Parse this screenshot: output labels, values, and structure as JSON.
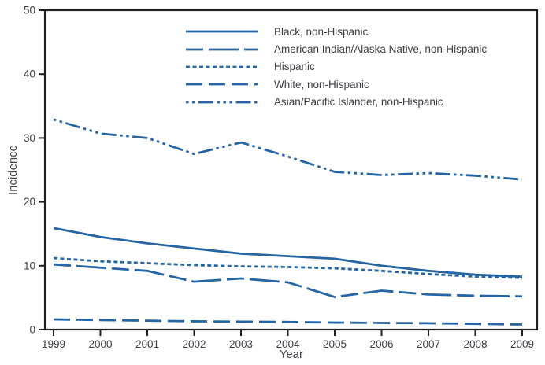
{
  "chart_data": {
    "type": "line",
    "title": "",
    "xlabel": "Year",
    "ylabel": "Incidence",
    "x": [
      1999,
      2000,
      2001,
      2002,
      2003,
      2004,
      2005,
      2006,
      2007,
      2008,
      2009
    ],
    "x_tick_labels": [
      "1999",
      "2000",
      "2001",
      "2002",
      "2003",
      "2004",
      "2005",
      "2006",
      "2007",
      "2008",
      "2009"
    ],
    "y_ticks": [
      0,
      10,
      20,
      30,
      40,
      50
    ],
    "ylim": [
      0,
      50
    ],
    "grid": false,
    "legend_position": "inside-top-center",
    "line_color": "#2565A3",
    "frame_color": "#231f20",
    "text_color": "#3b3e44",
    "series": [
      {
        "name": "Black, non-Hispanic",
        "dash": "solid",
        "values": [
          15.9,
          14.5,
          13.5,
          12.7,
          11.9,
          11.5,
          11.1,
          10.0,
          9.2,
          8.6,
          8.3
        ]
      },
      {
        "name": "American Indian/Alaska Native, non-Hispanic",
        "dash": "alt-long-dash",
        "values": [
          10.2,
          9.7,
          9.2,
          7.5,
          8.0,
          7.4,
          5.1,
          6.1,
          5.5,
          5.3,
          5.2
        ]
      },
      {
        "name": "Hispanic",
        "dash": "short-dash",
        "values": [
          11.2,
          10.7,
          10.4,
          10.1,
          9.9,
          9.8,
          9.6,
          9.2,
          8.7,
          8.3,
          8.1
        ]
      },
      {
        "name": "White, non-Hispanic",
        "dash": "long-dash",
        "values": [
          1.6,
          1.5,
          1.4,
          1.3,
          1.25,
          1.2,
          1.1,
          1.05,
          1.0,
          0.9,
          0.8
        ]
      },
      {
        "name": "Asian/Pacific Islander, non-Hispanic",
        "dash": "dash-dot-dot",
        "values": [
          32.9,
          30.7,
          30.0,
          27.5,
          29.3,
          27.1,
          24.7,
          24.2,
          24.5,
          24.1,
          23.5
        ]
      }
    ]
  }
}
